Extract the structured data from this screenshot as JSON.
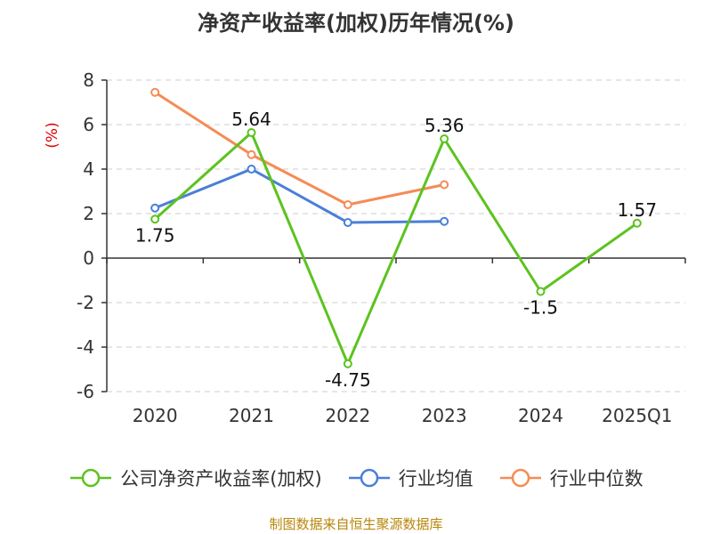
{
  "chart_data": {
    "type": "line",
    "title": "净资产收益率(加权)历年情况(%)",
    "ylabel": "(%)",
    "xlabel": "",
    "categories": [
      "2020",
      "2021",
      "2022",
      "2023",
      "2024",
      "2025Q1"
    ],
    "ylim": [
      -6,
      8
    ],
    "yticks": [
      8,
      6,
      4,
      2,
      0,
      -2,
      -4,
      -6
    ],
    "grid": true,
    "legend_position": "bottom",
    "series": [
      {
        "name": "公司净资产收益率(加权)",
        "color": "#5cc31f",
        "values": [
          1.75,
          5.64,
          -4.75,
          5.36,
          -1.5,
          1.57
        ],
        "labels": [
          "1.75",
          "5.64",
          "-4.75",
          "5.36",
          "-1.5",
          "1.57"
        ]
      },
      {
        "name": "行业均值",
        "color": "#4a7fd8",
        "values": [
          2.25,
          4.0,
          1.6,
          1.65,
          null,
          null
        ]
      },
      {
        "name": "行业中位数",
        "color": "#f58b55",
        "values": [
          7.45,
          4.65,
          2.4,
          3.3,
          null,
          null
        ]
      }
    ]
  },
  "ylabel_color": "#e00000",
  "footer": "制图数据来自恒生聚源数据库"
}
